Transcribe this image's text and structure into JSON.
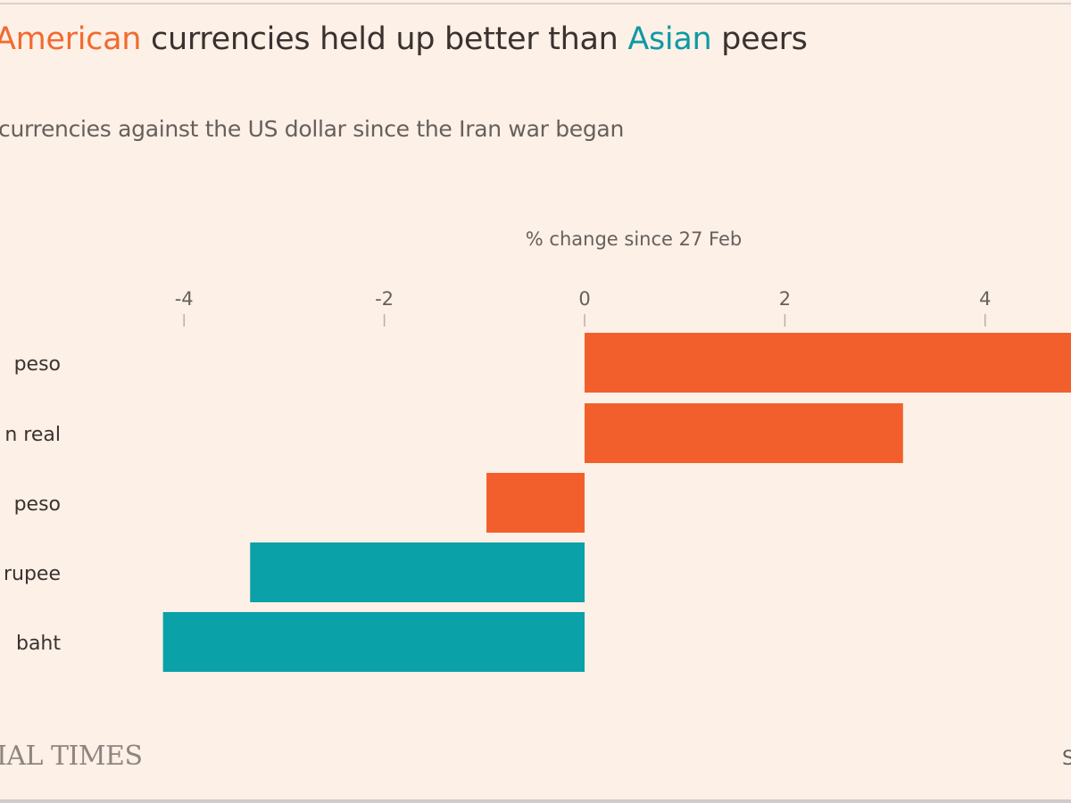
{
  "title": {
    "part1": "American",
    "part2": " currencies held up better than ",
    "part3": "Asian",
    "part4": " peers"
  },
  "subtitle": "currencies against the US dollar since the Iran war began",
  "logo_text": "IAL TIMES",
  "source_fragment": "S",
  "colors": {
    "latin_american": "#f25f2c",
    "asian": "#0aa1a8",
    "background": "#fdf0e6"
  },
  "chart_data": {
    "type": "bar",
    "orientation": "horizontal",
    "xlabel": "% change since 27 Feb",
    "categories": [
      "peso",
      "n real",
      "peso",
      "rupee",
      "baht"
    ],
    "values": [
      5.0,
      3.18,
      -0.98,
      -3.34,
      -4.21
    ],
    "groups": [
      "latin_american",
      "latin_american",
      "latin_american",
      "asian",
      "asian"
    ],
    "x_ticks": [
      -4,
      -2,
      0,
      2,
      4
    ],
    "x_tick_labels": [
      "-4",
      "-2",
      "0",
      "2",
      "4"
    ],
    "xlim": [
      -4.4,
      4.9
    ],
    "grid": false,
    "axis_position": "top"
  }
}
